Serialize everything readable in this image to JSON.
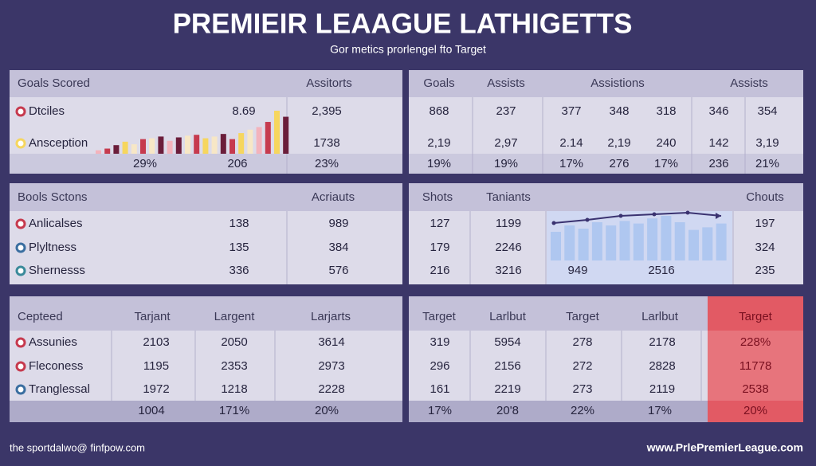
{
  "header": {
    "title": "PREMIEIR LEAAGUE LATHIGETTS",
    "subtitle": "Gor metics prorlengel fto Target"
  },
  "panels": [
    {
      "header": [
        "Goals Scored",
        "Assitorts"
      ],
      "rows": [
        [
          "Dtciles",
          "8.69",
          "2,395"
        ],
        [
          "Ansception",
          "1738"
        ]
      ],
      "footer": [
        "29%",
        "206",
        "23%"
      ],
      "minichart": {
        "values": [
          8,
          12,
          20,
          28,
          22,
          34,
          36,
          40,
          30,
          38,
          42,
          44,
          36,
          40,
          46,
          34,
          48,
          56,
          62,
          74,
          100,
          86
        ],
        "colors": [
          "#f3b3bc",
          "#c63a4e",
          "#6b1d3a",
          "#f6d65e",
          "#f7e7c6",
          "#c63a4e",
          "#f7e7c6",
          "#6b1d3a",
          "#f3b3bc",
          "#6b1d3a",
          "#f7e7c6",
          "#c63a4e",
          "#f6d65e",
          "#f7e7c6",
          "#6b1d3a",
          "#c63a4e",
          "#f6d65e",
          "#f7e7c6",
          "#f3b3bc",
          "#c63a4e",
          "#f6d65e",
          "#6b1d3a"
        ]
      }
    },
    {
      "header": [
        "Goals",
        "Assists",
        "Assistions",
        "Assists"
      ],
      "rows": [
        [
          "868",
          "237",
          "377",
          "348",
          "318",
          "346",
          "354"
        ],
        [
          "2,19",
          "2,97",
          "2.14",
          "2,19",
          "240",
          "142",
          "3,19"
        ]
      ],
      "footer": [
        "19%",
        "19%",
        "17%",
        "276",
        "17%",
        "236",
        "21%"
      ]
    },
    {
      "header": [
        "Bools Sctons",
        "Acriauts"
      ],
      "rows": [
        [
          "Anlicalses",
          "138",
          "989"
        ],
        [
          "Plyltness",
          "135",
          "384"
        ],
        [
          "Shernesss",
          "336",
          "576"
        ]
      ]
    },
    {
      "header": [
        "Shots",
        "Taniants",
        "Chouts"
      ],
      "rows": [
        [
          "127",
          "1199",
          "197"
        ],
        [
          "179",
          "2246",
          "324"
        ],
        [
          "216",
          "3216",
          "949",
          "2516",
          "235"
        ]
      ],
      "minichart": {
        "bars": [
          45,
          55,
          50,
          60,
          55,
          62,
          58,
          66,
          70,
          60,
          48,
          52,
          58
        ],
        "line": [
          40,
          48,
          58,
          62,
          66,
          58
        ]
      }
    },
    {
      "header": [
        "Cepteed",
        "Tarjant",
        "Largent",
        "Larjarts"
      ],
      "rows": [
        [
          "Assunies",
          "2103",
          "2050",
          "3614"
        ],
        [
          "Fleconess",
          "1195",
          "2353",
          "2973"
        ],
        [
          "Tranglessal",
          "1972",
          "1218",
          "2228"
        ]
      ],
      "footer": [
        "1004",
        "171%",
        "20%"
      ]
    },
    {
      "header": [
        "Target",
        "Larlbut",
        "Target",
        "Larlbut",
        "Target"
      ],
      "rows": [
        [
          "319",
          "5954",
          "278",
          "2178",
          "228%"
        ],
        [
          "296",
          "2156",
          "272",
          "2828",
          "11778"
        ],
        [
          "161",
          "2219",
          "273",
          "2119",
          "2538"
        ]
      ],
      "footer": [
        "17%",
        "20'8",
        "22%",
        "17%",
        "20%"
      ]
    }
  ],
  "footer": {
    "left": "the sportdalwo@ finfpow.com",
    "right": "www.PrlePremierLeague.com"
  }
}
